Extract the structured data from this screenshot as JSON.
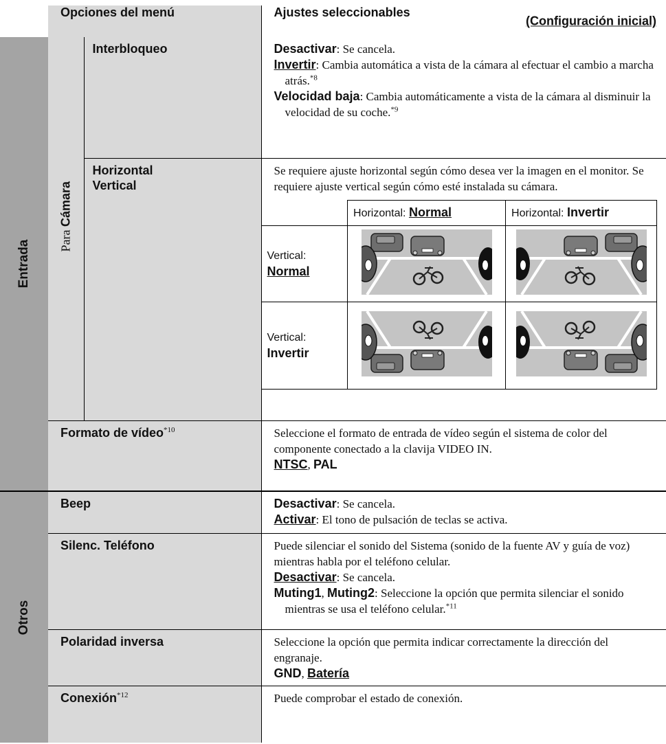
{
  "header": {
    "menu_options": "Opciones del menú",
    "settings": "Ajustes seleccionables",
    "initial": "(Configuración inicial)"
  },
  "sections": [
    {
      "label": "Entrada",
      "group": {
        "prefix": "Para",
        "name": "Cámara"
      },
      "rows": [
        {
          "name": [
            [
              {
                "text": "Interbloqueo",
                "style": "b"
              }
            ]
          ],
          "settings": [
            [
              {
                "text": "Desactivar",
                "style": "b"
              },
              {
                "text": ": Se cancela.",
                "style": "n"
              }
            ],
            [
              {
                "text": "Invertir",
                "style": "u"
              },
              {
                "text": ": Cambia automática a vista de la cámara al efectuar el cambio a marcha atrás.",
                "style": "n"
              },
              {
                "text": "*8",
                "style": "s"
              }
            ],
            [
              {
                "text": "Velocidad baja",
                "style": "b"
              },
              {
                "text": ": Cambia automáticamente a vista de la cámara al disminuir la velocidad de su coche.",
                "style": "n"
              },
              {
                "text": "*9",
                "style": "s"
              }
            ]
          ]
        },
        {
          "name": [
            [
              {
                "text": "Horizontal",
                "style": "b"
              }
            ],
            [
              {
                "text": "Vertical",
                "style": "b"
              }
            ]
          ],
          "settings": [
            [
              {
                "text": "Se requiere ajuste horizontal según cómo desea ver la imagen en el monitor. Se requiere ajuste vertical según cómo esté instalada su cámara.",
                "style": "n"
              }
            ]
          ],
          "grid": {
            "columns": [
              {
                "prefix": "Horizontal:",
                "value": "Normal"
              },
              {
                "prefix": "Horizontal:",
                "value": "Invertir"
              }
            ],
            "rows": [
              {
                "prefix": "Vertical:",
                "value": "Normal"
              },
              {
                "prefix": "Vertical:",
                "value": "Invertir"
              }
            ]
          }
        },
        {
          "name": [
            [
              {
                "text": "Formato de vídeo",
                "style": "b"
              },
              {
                "text": "*10",
                "style": "s"
              }
            ]
          ],
          "settings": [
            [
              {
                "text": "Seleccione el formato de entrada de vídeo según el sistema de color del componente conectado a la clavija VIDEO IN.",
                "style": "n"
              }
            ],
            [
              {
                "text": "NTSC",
                "style": "u"
              },
              {
                "text": ", ",
                "style": "n"
              },
              {
                "text": "PAL",
                "style": "b"
              }
            ]
          ]
        }
      ]
    },
    {
      "label": "Otros",
      "rows": [
        {
          "name": [
            [
              {
                "text": "Beep",
                "style": "b"
              }
            ]
          ],
          "settings": [
            [
              {
                "text": "Desactivar",
                "style": "b"
              },
              {
                "text": ": Se cancela.",
                "style": "n"
              }
            ],
            [
              {
                "text": "Activar",
                "style": "u"
              },
              {
                "text": ": El tono de pulsación de teclas se activa.",
                "style": "n"
              }
            ]
          ]
        },
        {
          "name": [
            [
              {
                "text": "Silenc. Teléfono",
                "style": "b"
              }
            ]
          ],
          "settings": [
            [
              {
                "text": "Puede silenciar el sonido del Sistema (sonido de la fuente AV y guía de voz) mientras habla por el teléfono celular.",
                "style": "n"
              }
            ],
            [
              {
                "text": "Desactivar",
                "style": "u"
              },
              {
                "text": ": Se cancela.",
                "style": "n"
              }
            ],
            [
              {
                "text": "Muting1",
                "style": "b"
              },
              {
                "text": ", ",
                "style": "n"
              },
              {
                "text": "Muting2",
                "style": "b"
              },
              {
                "text": ": Seleccione la opción que permita silenciar el sonido mientras se usa el teléfono celular.",
                "style": "n"
              },
              {
                "text": "*11",
                "style": "s"
              }
            ]
          ]
        },
        {
          "name": [
            [
              {
                "text": "Polaridad inversa",
                "style": "b"
              }
            ]
          ],
          "settings": [
            [
              {
                "text": "Seleccione la opción que permita indicar correctamente la dirección del engranaje.",
                "style": "n"
              }
            ],
            [
              {
                "text": "GND",
                "style": "b"
              },
              {
                "text": ", ",
                "style": "n"
              },
              {
                "text": "Batería",
                "style": "u"
              }
            ]
          ]
        },
        {
          "name": [
            [
              {
                "text": "Conexión",
                "style": "b"
              },
              {
                "text": "*12",
                "style": "s"
              }
            ]
          ],
          "settings": [
            [
              {
                "text": "Puede comprobar el estado de conexión.",
                "style": "n"
              }
            ]
          ]
        }
      ]
    }
  ]
}
